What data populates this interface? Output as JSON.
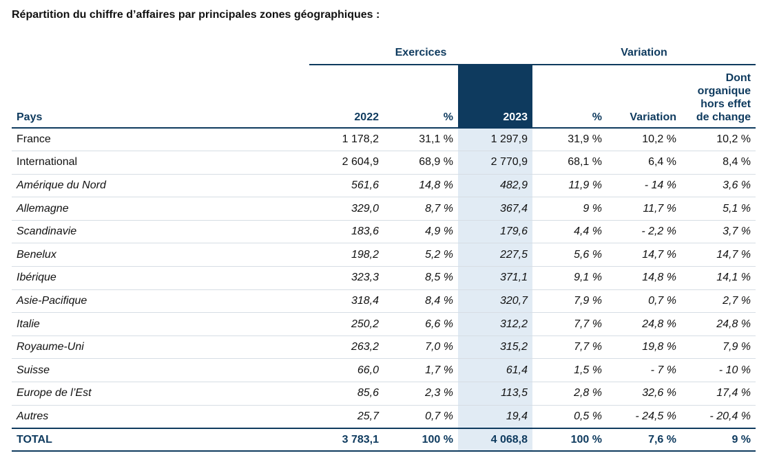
{
  "title": "Répartition du chiffre d’affaires par principales zones géographiques :",
  "groups": {
    "exercices": "Exercices",
    "variation": "Variation"
  },
  "headers": {
    "pays": "Pays",
    "y2022": "2022",
    "pct1": "%",
    "y2023": "2023",
    "pct2": "%",
    "variation": "Variation",
    "organique": "Dont organique hors effet de change"
  },
  "rows": [
    {
      "pays": "France",
      "v2022": "1 178,2",
      "p2022": "31,1 %",
      "v2023": "1 297,9",
      "p2023": "31,9 %",
      "var": "10,2 %",
      "org": "10,2 %",
      "italic": false
    },
    {
      "pays": "International",
      "v2022": "2 604,9",
      "p2022": "68,9 %",
      "v2023": "2 770,9",
      "p2023": "68,1 %",
      "var": "6,4 %",
      "org": "8,4 %",
      "italic": false
    },
    {
      "pays": "Amérique du Nord",
      "v2022": "561,6",
      "p2022": "14,8 %",
      "v2023": "482,9",
      "p2023": "11,9 %",
      "var": "- 14 %",
      "org": "3,6 %",
      "italic": true
    },
    {
      "pays": "Allemagne",
      "v2022": "329,0",
      "p2022": "8,7 %",
      "v2023": "367,4",
      "p2023": "9 %",
      "var": "11,7 %",
      "org": "5,1 %",
      "italic": true
    },
    {
      "pays": "Scandinavie",
      "v2022": "183,6",
      "p2022": "4,9 %",
      "v2023": "179,6",
      "p2023": "4,4 %",
      "var": "- 2,2 %",
      "org": "3,7 %",
      "italic": true
    },
    {
      "pays": "Benelux",
      "v2022": "198,2",
      "p2022": "5,2 %",
      "v2023": "227,5",
      "p2023": "5,6 %",
      "var": "14,7 %",
      "org": "14,7 %",
      "italic": true
    },
    {
      "pays": "Ibérique",
      "v2022": "323,3",
      "p2022": "8,5 %",
      "v2023": "371,1",
      "p2023": "9,1 %",
      "var": "14,8 %",
      "org": "14,1 %",
      "italic": true
    },
    {
      "pays": "Asie-Pacifique",
      "v2022": "318,4",
      "p2022": "8,4 %",
      "v2023": "320,7",
      "p2023": "7,9 %",
      "var": "0,7 %",
      "org": "2,7 %",
      "italic": true
    },
    {
      "pays": "Italie",
      "v2022": "250,2",
      "p2022": "6,6 %",
      "v2023": "312,2",
      "p2023": "7,7 %",
      "var": "24,8 %",
      "org": "24,8 %",
      "italic": true
    },
    {
      "pays": "Royaume-Uni",
      "v2022": "263,2",
      "p2022": "7,0 %",
      "v2023": "315,2",
      "p2023": "7,7 %",
      "var": "19,8 %",
      "org": "7,9 %",
      "italic": true
    },
    {
      "pays": "Suisse",
      "v2022": "66,0",
      "p2022": "1,7 %",
      "v2023": "61,4",
      "p2023": "1,5 %",
      "var": "- 7 %",
      "org": "- 10 %",
      "italic": true
    },
    {
      "pays": "Europe de l’Est",
      "v2022": "85,6",
      "p2022": "2,3 %",
      "v2023": "113,5",
      "p2023": "2,8 %",
      "var": "32,6 %",
      "org": "17,4 %",
      "italic": true
    },
    {
      "pays": "Autres",
      "v2022": "25,7",
      "p2022": "0,7 %",
      "v2023": "19,4",
      "p2023": "0,5 %",
      "var": "- 24,5 %",
      "org": "- 20,4 %",
      "italic": true
    }
  ],
  "total": {
    "pays": "TOTAL",
    "v2022": "3 783,1",
    "p2022": "100 %",
    "v2023": "4 068,8",
    "p2023": "100 %",
    "var": "7,6 %",
    "org": "9 %"
  },
  "colors": {
    "navy": "#0e3a5e",
    "highlight": "#e1ebf4"
  }
}
